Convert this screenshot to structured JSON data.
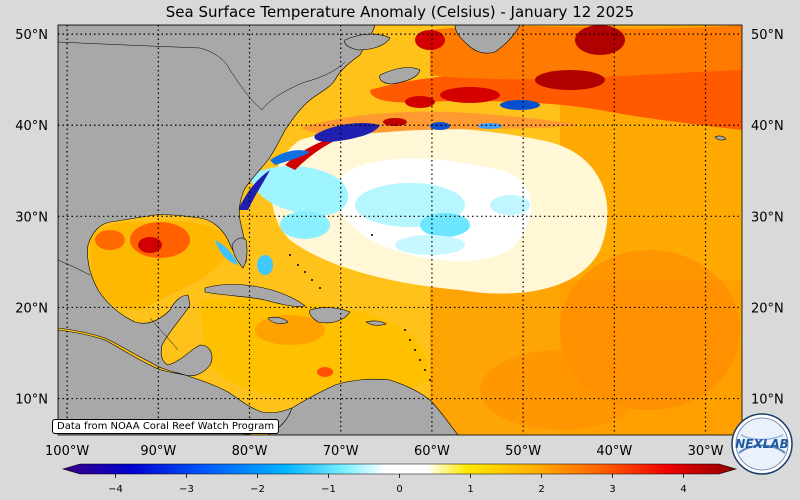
{
  "title": "Sea Surface Temperature Anomaly (Celsius) - January 12 2025",
  "source_note": "Data from NOAA Coral Reef Watch Program",
  "logo_text": "NEXLAB",
  "map": {
    "lon_range": [
      -101,
      -26
    ],
    "lat_range": [
      6,
      51
    ],
    "lon_ticks": [
      "100°W",
      "90°W",
      "80°W",
      "70°W",
      "60°W",
      "50°W",
      "40°W",
      "30°W"
    ],
    "lat_ticks_left": [
      "50°N",
      "40°N",
      "30°N",
      "20°N",
      "10°N"
    ],
    "lat_ticks_right": [
      "50°N",
      "40°N",
      "30°N",
      "20°N",
      "10°N"
    ],
    "gridlines": "dotted",
    "land_color": "#a8a8a8"
  },
  "colorbar": {
    "min": -4.5,
    "max": 4.5,
    "ticks": [
      "−4",
      "−3",
      "−2",
      "−1",
      "0",
      "1",
      "2",
      "3",
      "4"
    ],
    "colors": [
      "#3a007f",
      "#0000d0",
      "#0060ff",
      "#00b4ff",
      "#7ff0ff",
      "#ffffff",
      "#ffffff",
      "#ffe800",
      "#ffb000",
      "#ff6000",
      "#ee0000",
      "#8c0000"
    ]
  }
}
